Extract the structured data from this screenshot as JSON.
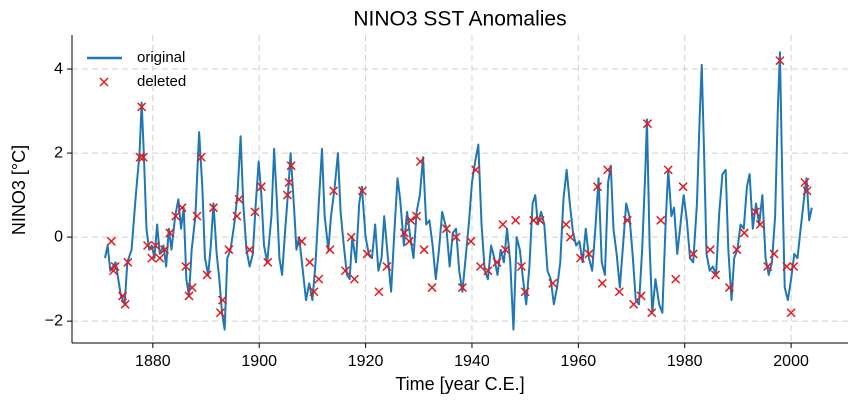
{
  "chart_data": {
    "type": "line",
    "title": "NINO3 SST Anomalies",
    "xlabel": "Time [year C.E.]",
    "ylabel": "NINO3 [°C]",
    "xlim": [
      1864.8,
      2010.7
    ],
    "ylim": [
      -2.52,
      4.81
    ],
    "xticks": [
      1880,
      1900,
      1920,
      1940,
      1960,
      1980,
      2000
    ],
    "yticks": [
      {
        "value": -2,
        "label": "−2"
      },
      0,
      2,
      4
    ],
    "grid": true,
    "legend": "upper left",
    "series": [
      {
        "name": "original",
        "type": "line",
        "color": "#1f77b4",
        "x": [
          1871,
          1871.5,
          1872,
          1873,
          1873.5,
          1874,
          1874.7,
          1875.2,
          1876,
          1876.8,
          1877.5,
          1877.9,
          1878.3,
          1878.8,
          1879.3,
          1879.8,
          1880.3,
          1880.8,
          1881.3,
          1882,
          1882.5,
          1883,
          1883.5,
          1884.2,
          1884.8,
          1885.3,
          1885.8,
          1886.3,
          1886.8,
          1887.3,
          1888,
          1888.7,
          1889.3,
          1889.8,
          1890.4,
          1890.9,
          1891.4,
          1892,
          1892.5,
          1893,
          1893.5,
          1894,
          1894.6,
          1895.3,
          1895.9,
          1896.5,
          1897,
          1897.6,
          1898.2,
          1898.8,
          1899.3,
          1899.9,
          1900.4,
          1900.9,
          1901.5,
          1902.3,
          1902.8,
          1903.3,
          1903.8,
          1904.3,
          1904.9,
          1905.5,
          1905.9,
          1906.5,
          1907,
          1907.5,
          1908.2,
          1908.8,
          1909.4,
          1910,
          1910.6,
          1911.2,
          1911.8,
          1912.3,
          1913,
          1913.5,
          1914.2,
          1914.8,
          1915.3,
          1915.9,
          1916.5,
          1917,
          1917.5,
          1918.2,
          1918.8,
          1919.3,
          1920,
          1920.6,
          1921.2,
          1921.8,
          1922.4,
          1923,
          1923.5,
          1924.2,
          1924.8,
          1925.4,
          1926,
          1926.5,
          1927.2,
          1927.8,
          1928.4,
          1929,
          1929.6,
          1930.2,
          1930.8,
          1931.4,
          1932,
          1932.6,
          1933.2,
          1933.8,
          1934.4,
          1935.2,
          1935.8,
          1936.4,
          1937,
          1937.6,
          1938.2,
          1938.8,
          1939.4,
          1940,
          1940.6,
          1941.2,
          1941.8,
          1942.4,
          1943,
          1943.6,
          1944.2,
          1944.8,
          1945.4,
          1946,
          1946.6,
          1947.2,
          1947.8,
          1948.4,
          1949,
          1949.6,
          1950.2,
          1950.8,
          1951.4,
          1951.9,
          1952.4,
          1953,
          1953.6,
          1954.2,
          1954.8,
          1955.4,
          1956,
          1956.6,
          1957.2,
          1957.8,
          1958.4,
          1959,
          1959.6,
          1960.2,
          1960.8,
          1961.4,
          1962,
          1962.6,
          1963.2,
          1963.8,
          1964.4,
          1965,
          1965.6,
          1966.1,
          1966.6,
          1967.2,
          1967.8,
          1968.4,
          1969,
          1969.6,
          1970.2,
          1970.8,
          1971.4,
          1972,
          1972.6,
          1972.9,
          1973.4,
          1973.9,
          1974.5,
          1975.2,
          1975.8,
          1976.4,
          1976.9,
          1977.5,
          1978,
          1978.6,
          1979.2,
          1979.8,
          1980.4,
          1981,
          1981.6,
          1982.3,
          1982.8,
          1983.2,
          1983.6,
          1984.1,
          1984.7,
          1985.3,
          1985.9,
          1986.5,
          1987.1,
          1987.7,
          1988.2,
          1988.8,
          1989.3,
          1989.9,
          1990.5,
          1991.1,
          1991.7,
          1992.2,
          1992.8,
          1993.4,
          1994,
          1994.6,
          1995.2,
          1995.8,
          1996.4,
          1997,
          1997.5,
          1997.9,
          1998.4,
          1998.8,
          1999.4,
          2000,
          2000.6,
          2001.2,
          2001.8,
          2002.5,
          2002.9,
          2003.4,
          2003.9
        ],
        "values": [
          -0.5,
          -0.2,
          -0.8,
          -0.6,
          -1.0,
          -1.4,
          -1.6,
          -0.6,
          -0.3,
          1.0,
          2.0,
          3.2,
          2.0,
          0.2,
          -0.3,
          -0.2,
          -0.5,
          0.3,
          -0.4,
          -0.2,
          -0.7,
          0.2,
          -0.3,
          0.5,
          0.9,
          0.2,
          0.7,
          -1.0,
          -1.4,
          -0.3,
          0.5,
          2.5,
          1.2,
          -0.5,
          -0.9,
          -0.2,
          0.8,
          -0.4,
          -1.0,
          -1.8,
          -2.2,
          -0.5,
          -0.3,
          0.3,
          1.0,
          2.4,
          0.8,
          -0.3,
          -0.7,
          -0.4,
          0.7,
          1.8,
          1.0,
          -0.2,
          -0.6,
          0.5,
          2.1,
          0.9,
          -0.5,
          -0.9,
          0.2,
          1.2,
          2.0,
          0.8,
          -0.3,
          0.0,
          -0.8,
          -1.5,
          -1.1,
          -1.5,
          -0.6,
          0.8,
          2.1,
          0.5,
          -0.3,
          0.5,
          1.2,
          2.0,
          0.6,
          -0.2,
          -0.9,
          -1.0,
          0.0,
          -0.6,
          0.8,
          1.2,
          0.0,
          -0.4,
          -0.5,
          0.3,
          -0.8,
          -0.5,
          0.5,
          -0.5,
          -1.3,
          0.1,
          1.4,
          0.9,
          -0.2,
          0.6,
          0.0,
          -0.5,
          0.6,
          1.0,
          1.9,
          0.3,
          0.4,
          -0.2,
          -1.0,
          -0.3,
          0.6,
          0.2,
          -0.7,
          0.1,
          0.2,
          -0.8,
          -1.3,
          -0.5,
          0.3,
          1.3,
          1.8,
          2.2,
          0.3,
          -0.8,
          -1.0,
          -0.2,
          -0.5,
          -0.9,
          -0.3,
          -0.6,
          0.2,
          -0.6,
          -2.2,
          0.0,
          -0.3,
          -1.0,
          -1.6,
          -0.7,
          0.8,
          1.0,
          0.3,
          0.6,
          0.3,
          -0.8,
          -1.0,
          -1.6,
          -1.2,
          -0.6,
          0.9,
          1.6,
          0.8,
          0.1,
          -0.2,
          -0.1,
          -0.6,
          0.2,
          -0.5,
          -0.8,
          0.2,
          1.4,
          -0.6,
          -0.9,
          1.3,
          1.7,
          0.2,
          -0.4,
          -1.2,
          -0.2,
          0.8,
          0.5,
          -0.4,
          -1.5,
          -1.6,
          -0.3,
          1.6,
          2.8,
          -0.2,
          -1.8,
          -1.0,
          -1.6,
          -1.8,
          0.3,
          1.6,
          0.5,
          0.7,
          -0.4,
          0.3,
          1.0,
          0.4,
          -0.5,
          -0.6,
          0.8,
          2.8,
          4.1,
          2.2,
          -0.4,
          -0.8,
          -0.7,
          -0.9,
          0.6,
          1.5,
          1.6,
          -0.3,
          -1.5,
          -0.5,
          -0.3,
          0.3,
          0.2,
          1.2,
          1.5,
          0.2,
          0.8,
          0.3,
          1.0,
          -0.5,
          -0.9,
          -0.6,
          0.5,
          3.0,
          4.4,
          1.0,
          -1.2,
          -1.5,
          -1.0,
          -0.4,
          -0.5,
          0.2,
          1.0,
          1.4,
          0.4,
          0.7
        ]
      },
      {
        "name": "deleted",
        "type": "scatter",
        "color": "#e41a1c",
        "x": [
          1872.2,
          1872.6,
          1872.9,
          1874.3,
          1874.8,
          1875.3,
          1877.6,
          1877.9,
          1878.2,
          1879,
          1879.8,
          1880.5,
          1881.3,
          1882.2,
          1883.2,
          1884.3,
          1885.5,
          1886.2,
          1886.8,
          1887.4,
          1888.3,
          1889.1,
          1890.2,
          1891.4,
          1892.7,
          1893.1,
          1894.3,
          1895.8,
          1896.2,
          1898.2,
          1899.2,
          1900.4,
          1901.6,
          1905.3,
          1905.6,
          1906,
          1908,
          1909.5,
          1910.3,
          1911.2,
          1913.3,
          1914,
          1916.2,
          1917.3,
          1917.9,
          1919.4,
          1920.3,
          1922.5,
          1924,
          1927.3,
          1928.2,
          1928.5,
          1929.6,
          1930.3,
          1931,
          1932.5,
          1935.2,
          1937,
          1938.2,
          1939.8,
          1940.7,
          1941.6,
          1943,
          1944.7,
          1945.8,
          1946.3,
          1948.2,
          1949.3,
          1950,
          1951.6,
          1952.8,
          1955.2,
          1957.7,
          1958.5,
          1960.4,
          1962,
          1963.6,
          1964.5,
          1965.5,
          1967.7,
          1969.2,
          1970.4,
          1971.8,
          1973,
          1973.8,
          1975.5,
          1976.9,
          1978.3,
          1979.7,
          1981.6,
          1984.8,
          1985.8,
          1988.4,
          1989.8,
          1991.2,
          1993.3,
          1994.2,
          1995.6,
          1996.8,
          1997.9,
          1999.2,
          2000,
          2000.5,
          2002.6,
          2003
        ],
        "values": [
          -0.1,
          -0.8,
          -0.7,
          -1.4,
          -1.6,
          -0.6,
          1.9,
          3.1,
          1.9,
          -0.2,
          -0.5,
          -0.2,
          -0.5,
          -0.3,
          0.1,
          0.5,
          0.7,
          -0.7,
          -1.4,
          -1.2,
          0.5,
          1.9,
          -0.9,
          0.7,
          -1.8,
          -1.5,
          -0.3,
          0.5,
          0.9,
          -0.3,
          0.6,
          1.2,
          -0.6,
          1.0,
          1.3,
          1.7,
          -0.1,
          -0.6,
          -1.3,
          -1.0,
          -0.3,
          1.1,
          -0.8,
          0.0,
          -1.0,
          1.1,
          -0.4,
          -1.3,
          -0.7,
          0.1,
          -0.1,
          0.4,
          0.5,
          1.8,
          -0.3,
          -1.2,
          0.2,
          0.0,
          -1.2,
          -0.1,
          1.6,
          -0.7,
          -0.8,
          -0.6,
          0.3,
          -0.3,
          0.4,
          -0.7,
          -1.3,
          0.4,
          0.4,
          -1.1,
          0.3,
          0.0,
          -0.5,
          -0.4,
          1.2,
          -1.1,
          1.6,
          -1.3,
          0.4,
          -1.6,
          -1.4,
          2.7,
          -1.8,
          0.4,
          1.6,
          -1.0,
          1.2,
          -0.4,
          -0.3,
          -0.9,
          -1.2,
          -0.3,
          0.1,
          0.6,
          0.3,
          -0.7,
          -0.4,
          4.2,
          -0.7,
          -1.8,
          -0.7,
          1.3,
          1.1
        ]
      }
    ]
  }
}
